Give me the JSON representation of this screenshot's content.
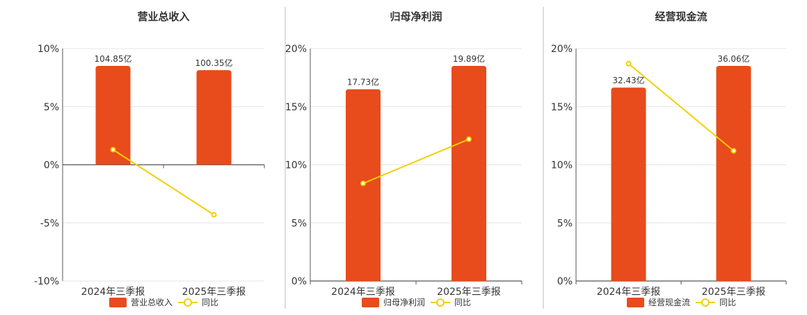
{
  "colors": {
    "bar": "#e84b1c",
    "line": "#f1d000",
    "grid": "#e6e6e6",
    "axis": "#555555",
    "text": "#333333",
    "divider": "#bbbbbb"
  },
  "chart_data": [
    {
      "type": "bar+line",
      "title": "营业总收入",
      "categories": [
        "2024年三季报",
        "2025年三季报"
      ],
      "bar_series": {
        "name": "营业总收入",
        "values": [
          104.85,
          100.35
        ],
        "labels": [
          "104.85亿",
          "100.35亿"
        ]
      },
      "line_series": {
        "name": "同比",
        "values": [
          1.3,
          -4.3
        ]
      },
      "y_axis": {
        "ticks": [
          "10%",
          "5%",
          "0%",
          "-5%",
          "-10%"
        ],
        "min": -10,
        "max": 10
      },
      "legend_position": "bottom"
    },
    {
      "type": "bar+line",
      "title": "归母净利润",
      "categories": [
        "2024年三季报",
        "2025年三季报"
      ],
      "bar_series": {
        "name": "归母净利润",
        "values": [
          17.73,
          19.89
        ],
        "labels": [
          "17.73亿",
          "19.89亿"
        ]
      },
      "line_series": {
        "name": "同比",
        "values": [
          8.4,
          12.2
        ]
      },
      "y_axis": {
        "ticks": [
          "20%",
          "15%",
          "10%",
          "5%",
          "0%"
        ],
        "min": 0,
        "max": 20
      },
      "legend_position": "bottom"
    },
    {
      "type": "bar+line",
      "title": "经营现金流",
      "categories": [
        "2024年三季报",
        "2025年三季报"
      ],
      "bar_series": {
        "name": "经营现金流",
        "values": [
          32.43,
          36.06
        ],
        "labels": [
          "32.43亿",
          "36.06亿"
        ]
      },
      "line_series": {
        "name": "同比",
        "values": [
          18.7,
          11.2
        ]
      },
      "y_axis": {
        "ticks": [
          "20%",
          "15%",
          "10%",
          "5%",
          "0%"
        ],
        "min": 0,
        "max": 20
      },
      "legend_position": "bottom"
    }
  ]
}
